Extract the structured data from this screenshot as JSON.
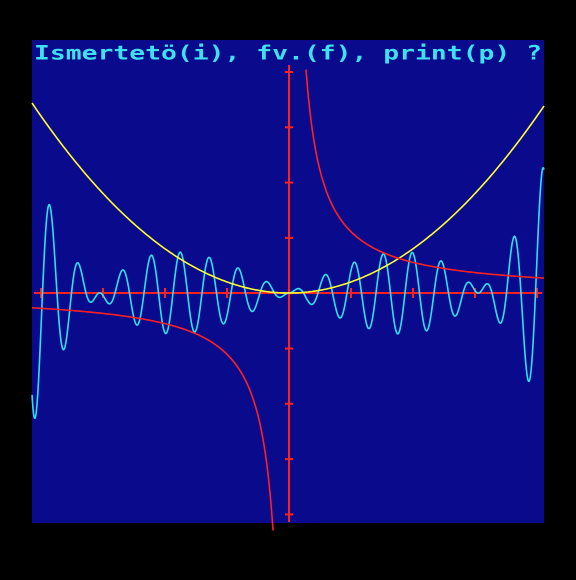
{
  "screen": {
    "prompt": "Ismertetö(i), fv.(f), print(p) ?"
  }
}
